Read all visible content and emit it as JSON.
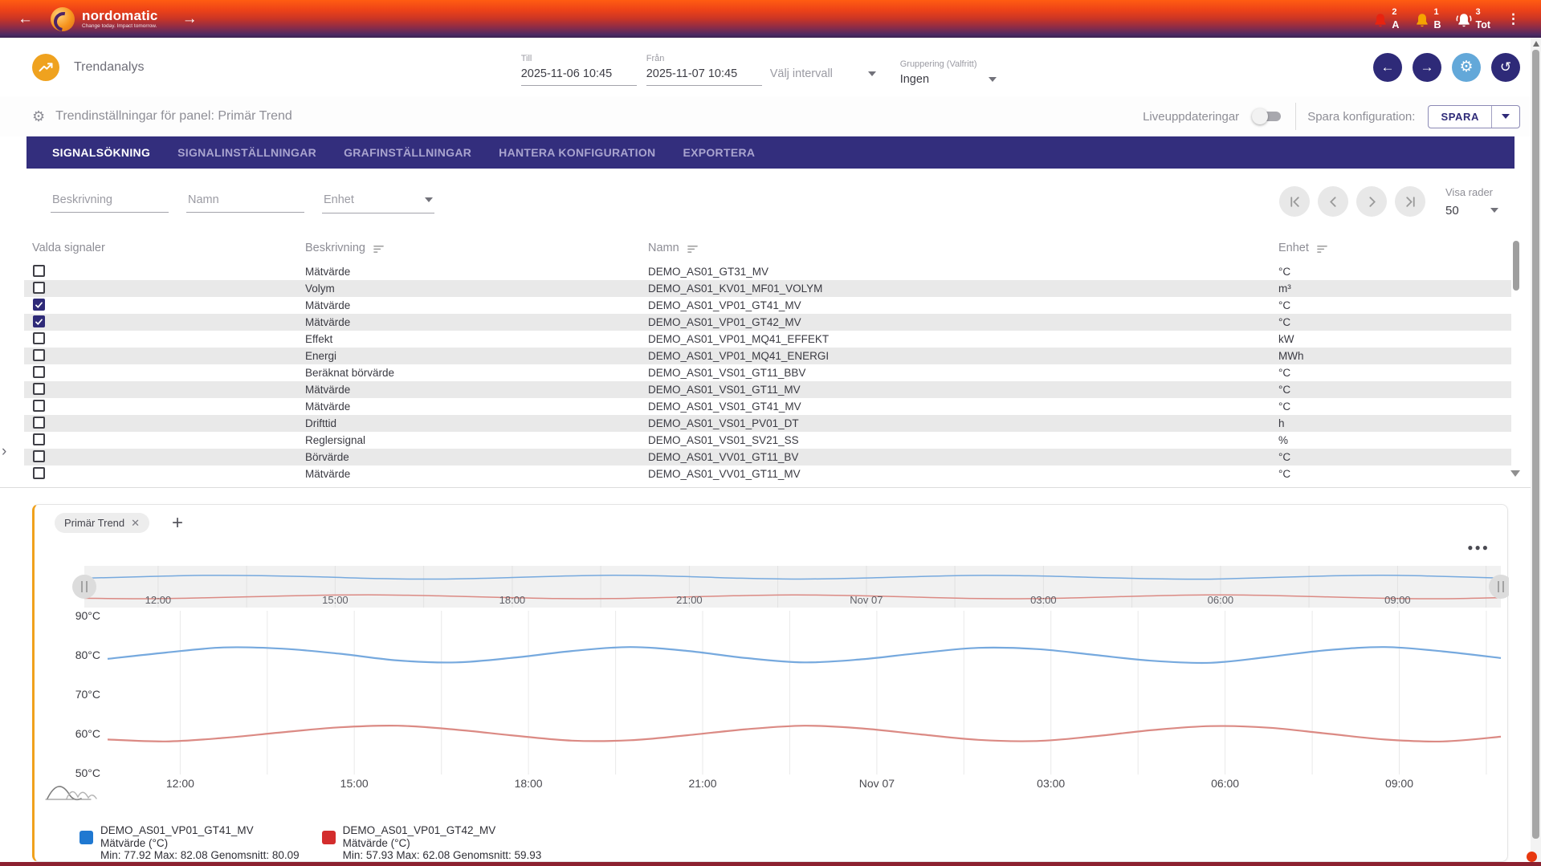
{
  "topbar": {
    "brand": "nordomatic",
    "tagline": "Change today. Impact tomorrow.",
    "alarms": [
      {
        "count": "2",
        "label": "A",
        "color": "#e8230f",
        "ringing": false
      },
      {
        "count": "1",
        "label": "B",
        "color": "#f5a300",
        "ringing": false
      },
      {
        "count": "3",
        "label": "Tot",
        "color": "#ffffff",
        "ringing": true
      }
    ]
  },
  "toolbar": {
    "title": "Trendanalys",
    "till": {
      "label": "Till",
      "value": "2025-11-06 10:45"
    },
    "fran": {
      "label": "Från",
      "value": "2025-11-07 10:45"
    },
    "interval_placeholder": "Välj intervall",
    "grouping": {
      "label": "Gruppering (Valfritt)",
      "value": "Ingen"
    }
  },
  "settings": {
    "title": "Trendinställningar för panel: Primär Trend",
    "live_label": "Liveuppdateringar",
    "save_label": "Spara konfiguration:",
    "save_button": "SPARA"
  },
  "tabs": [
    {
      "label": "SIGNALSÖKNING",
      "active": true
    },
    {
      "label": "SIGNALINSTÄLLNINGAR",
      "active": false
    },
    {
      "label": "GRAFINSTÄLLNINGAR",
      "active": false
    },
    {
      "label": "HANTERA KONFIGURATION",
      "active": false
    },
    {
      "label": "EXPORTERA",
      "active": false
    }
  ],
  "filters": {
    "beskrivning_placeholder": "Beskrivning",
    "namn_placeholder": "Namn",
    "enhet_placeholder": "Enhet",
    "rows_label": "Visa rader",
    "rows_value": "50"
  },
  "table": {
    "headers": {
      "selected": "Valda signaler",
      "description": "Beskrivning",
      "name": "Namn",
      "unit": "Enhet"
    },
    "rows": [
      {
        "checked": false,
        "description": "Mätvärde",
        "name": "DEMO_AS01_GT31_MV",
        "unit": "°C"
      },
      {
        "checked": false,
        "description": "Volym",
        "name": "DEMO_AS01_KV01_MF01_VOLYM",
        "unit": "m³"
      },
      {
        "checked": true,
        "description": "Mätvärde",
        "name": "DEMO_AS01_VP01_GT41_MV",
        "unit": "°C"
      },
      {
        "checked": true,
        "description": "Mätvärde",
        "name": "DEMO_AS01_VP01_GT42_MV",
        "unit": "°C"
      },
      {
        "checked": false,
        "description": "Effekt",
        "name": "DEMO_AS01_VP01_MQ41_EFFEKT",
        "unit": "kW"
      },
      {
        "checked": false,
        "description": "Energi",
        "name": "DEMO_AS01_VP01_MQ41_ENERGI",
        "unit": "MWh"
      },
      {
        "checked": false,
        "description": "Beräknat börvärde",
        "name": "DEMO_AS01_VS01_GT11_BBV",
        "unit": "°C"
      },
      {
        "checked": false,
        "description": "Mätvärde",
        "name": "DEMO_AS01_VS01_GT11_MV",
        "unit": "°C"
      },
      {
        "checked": false,
        "description": "Mätvärde",
        "name": "DEMO_AS01_VS01_GT41_MV",
        "unit": "°C"
      },
      {
        "checked": false,
        "description": "Drifttid",
        "name": "DEMO_AS01_VS01_PV01_DT",
        "unit": "h"
      },
      {
        "checked": false,
        "description": "Reglersignal",
        "name": "DEMO_AS01_VS01_SV21_SS",
        "unit": "%"
      },
      {
        "checked": false,
        "description": "Börvärde",
        "name": "DEMO_AS01_VV01_GT11_BV",
        "unit": "°C"
      },
      {
        "checked": false,
        "description": "Mätvärde",
        "name": "DEMO_AS01_VV01_GT11_MV",
        "unit": "°C"
      }
    ]
  },
  "chart_panel": {
    "chip_label": "Primär Trend",
    "legend": [
      {
        "name": "DEMO_AS01_VP01_GT41_MV",
        "sub": "Mätvärde (°C)",
        "stats": "Min: 77.92 Max: 82.08 Genomsnitt: 80.09",
        "color": "#1f78d1"
      },
      {
        "name": "DEMO_AS01_VP01_GT42_MV",
        "sub": "Mätvärde (°C)",
        "stats": "Min: 57.93 Max: 62.08 Genomsnitt: 59.93",
        "color": "#d32d2d"
      }
    ]
  },
  "chart_data": {
    "type": "line",
    "x_start": "2025-11-06 10:45",
    "x_end": "2025-11-07 10:45",
    "x_range_hours": [
      0,
      24
    ],
    "ylim": [
      50,
      90
    ],
    "grid": "vertical",
    "legend_position": "bottom",
    "y_ticks": [
      {
        "v": 90,
        "label": "90°C"
      },
      {
        "v": 80,
        "label": "80°C"
      },
      {
        "v": 70,
        "label": "70°C"
      },
      {
        "v": 60,
        "label": "60°C"
      },
      {
        "v": 50,
        "label": "50°C"
      }
    ],
    "x_ticks": [
      {
        "h": 1.25,
        "label": "12:00"
      },
      {
        "h": 4.25,
        "label": "15:00"
      },
      {
        "h": 7.25,
        "label": "18:00"
      },
      {
        "h": 10.25,
        "label": "21:00"
      },
      {
        "h": 13.25,
        "label": "Nov 07"
      },
      {
        "h": 16.25,
        "label": "03:00"
      },
      {
        "h": 19.25,
        "label": "06:00"
      },
      {
        "h": 22.25,
        "label": "09:00"
      }
    ],
    "x_hours": [
      0,
      1,
      2,
      3,
      4,
      5,
      6,
      7,
      8,
      9,
      10,
      11,
      12,
      13,
      14,
      15,
      16,
      17,
      18,
      19,
      20,
      21,
      22,
      23,
      24
    ],
    "series": [
      {
        "name": "DEMO_AS01_VP01_GT41_MV",
        "unit": "°C",
        "line_color": "#76a9de",
        "swatch": "#1f78d1",
        "values": [
          79.0,
          80.6,
          81.9,
          81.6,
          80.3,
          78.6,
          78.1,
          79.3,
          81.0,
          82.0,
          81.0,
          79.2,
          78.1,
          78.9,
          80.5,
          81.8,
          81.5,
          80.0,
          78.5,
          78.0,
          79.5,
          81.2,
          82.0,
          80.9,
          79.2
        ]
      },
      {
        "name": "DEMO_AS01_VP01_GT42_MV",
        "unit": "°C",
        "line_color": "#db8a84",
        "swatch": "#d32d2d",
        "values": [
          58.5,
          58.0,
          58.9,
          60.3,
          61.6,
          62.0,
          61.0,
          59.5,
          58.2,
          58.3,
          59.6,
          61.1,
          62.0,
          61.3,
          59.8,
          58.4,
          58.1,
          59.3,
          60.9,
          61.9,
          61.5,
          60.0,
          58.5,
          58.0,
          59.2
        ]
      }
    ]
  }
}
